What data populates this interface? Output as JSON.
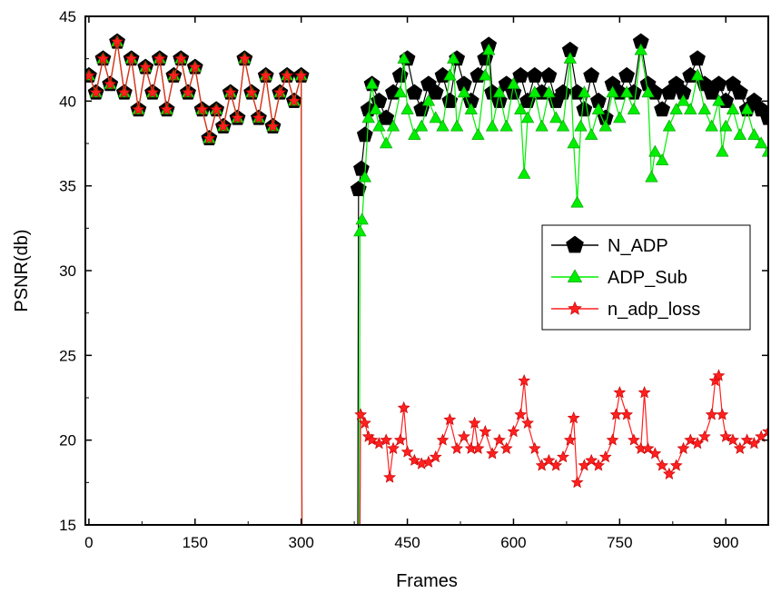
{
  "chart_data": {
    "type": "line",
    "title": "",
    "xlabel": "Frames",
    "ylabel": "PSNR(db)",
    "xlim": [
      -5,
      960
    ],
    "ylim": [
      15,
      45
    ],
    "xticks": [
      0,
      150,
      300,
      450,
      600,
      750,
      900
    ],
    "yticks": [
      15,
      20,
      25,
      30,
      35,
      40,
      45
    ],
    "grid": false,
    "legend_position": "right",
    "series": [
      {
        "name": "N_ADP",
        "color": "#000000",
        "marker": "pentagon",
        "values": [
          [
            0,
            41.5
          ],
          [
            10,
            40.5
          ],
          [
            20,
            42.5
          ],
          [
            30,
            41.0
          ],
          [
            40,
            43.5
          ],
          [
            50,
            40.5
          ],
          [
            60,
            42.5
          ],
          [
            70,
            39.5
          ],
          [
            80,
            42.0
          ],
          [
            90,
            40.5
          ],
          [
            100,
            42.5
          ],
          [
            110,
            39.5
          ],
          [
            120,
            41.5
          ],
          [
            130,
            42.5
          ],
          [
            140,
            40.5
          ],
          [
            150,
            42.0
          ],
          [
            160,
            39.5
          ],
          [
            170,
            37.8
          ],
          [
            180,
            39.5
          ],
          [
            190,
            38.5
          ],
          [
            200,
            40.5
          ],
          [
            210,
            39.0
          ],
          [
            220,
            42.5
          ],
          [
            230,
            40.5
          ],
          [
            240,
            39.0
          ],
          [
            250,
            41.5
          ],
          [
            260,
            38.5
          ],
          [
            270,
            40.5
          ],
          [
            280,
            41.5
          ],
          [
            290,
            40.0
          ],
          [
            300,
            41.5
          ],
          [
            301,
            15.0
          ],
          [
            380,
            15.0
          ],
          [
            381,
            34.8
          ],
          [
            385,
            36.0
          ],
          [
            390,
            38.0
          ],
          [
            395,
            39.5
          ],
          [
            400,
            41.0
          ],
          [
            410,
            40.0
          ],
          [
            420,
            39.0
          ],
          [
            430,
            40.5
          ],
          [
            440,
            41.5
          ],
          [
            450,
            42.5
          ],
          [
            460,
            40.5
          ],
          [
            470,
            39.5
          ],
          [
            480,
            41.0
          ],
          [
            490,
            40.5
          ],
          [
            500,
            41.5
          ],
          [
            510,
            40.0
          ],
          [
            520,
            42.5
          ],
          [
            530,
            41.0
          ],
          [
            540,
            40.0
          ],
          [
            550,
            41.5
          ],
          [
            560,
            42.5
          ],
          [
            565,
            43.3
          ],
          [
            570,
            40.5
          ],
          [
            580,
            40.0
          ],
          [
            590,
            41.0
          ],
          [
            600,
            40.5
          ],
          [
            610,
            41.5
          ],
          [
            620,
            40.0
          ],
          [
            630,
            41.5
          ],
          [
            640,
            40.5
          ],
          [
            650,
            41.5
          ],
          [
            660,
            40.0
          ],
          [
            670,
            40.5
          ],
          [
            680,
            43.0
          ],
          [
            690,
            40.5
          ],
          [
            700,
            39.5
          ],
          [
            710,
            41.5
          ],
          [
            720,
            40.0
          ],
          [
            730,
            39.0
          ],
          [
            740,
            41.0
          ],
          [
            750,
            40.5
          ],
          [
            760,
            41.5
          ],
          [
            770,
            40.5
          ],
          [
            780,
            43.5
          ],
          [
            790,
            41.0
          ],
          [
            800,
            40.5
          ],
          [
            810,
            39.5
          ],
          [
            820,
            40.5
          ],
          [
            830,
            41.0
          ],
          [
            840,
            40.5
          ],
          [
            850,
            41.5
          ],
          [
            860,
            42.5
          ],
          [
            870,
            41.0
          ],
          [
            880,
            40.5
          ],
          [
            890,
            41.0
          ],
          [
            900,
            40.0
          ],
          [
            910,
            41.0
          ],
          [
            920,
            40.5
          ],
          [
            930,
            39.5
          ],
          [
            940,
            40.0
          ],
          [
            950,
            39.5
          ],
          [
            960,
            39.0
          ]
        ]
      },
      {
        "name": "ADP_Sub",
        "color": "#00ee00",
        "marker": "triangle",
        "values": [
          [
            0,
            41.5
          ],
          [
            10,
            40.5
          ],
          [
            20,
            42.5
          ],
          [
            30,
            41.0
          ],
          [
            40,
            43.5
          ],
          [
            50,
            40.5
          ],
          [
            60,
            42.5
          ],
          [
            70,
            39.5
          ],
          [
            80,
            42.0
          ],
          [
            90,
            40.5
          ],
          [
            100,
            42.5
          ],
          [
            110,
            39.5
          ],
          [
            120,
            41.5
          ],
          [
            130,
            42.5
          ],
          [
            140,
            40.5
          ],
          [
            150,
            42.0
          ],
          [
            160,
            39.5
          ],
          [
            170,
            37.8
          ],
          [
            180,
            39.5
          ],
          [
            190,
            38.5
          ],
          [
            200,
            40.5
          ],
          [
            210,
            39.0
          ],
          [
            220,
            42.5
          ],
          [
            230,
            40.5
          ],
          [
            240,
            39.0
          ],
          [
            250,
            41.5
          ],
          [
            260,
            38.5
          ],
          [
            270,
            40.5
          ],
          [
            280,
            41.5
          ],
          [
            290,
            40.0
          ],
          [
            300,
            41.5
          ],
          [
            301,
            15.0
          ],
          [
            382,
            15.0
          ],
          [
            383,
            32.3
          ],
          [
            386,
            33.0
          ],
          [
            390,
            35.5
          ],
          [
            395,
            39.0
          ],
          [
            400,
            41.0
          ],
          [
            405,
            39.5
          ],
          [
            410,
            38.5
          ],
          [
            420,
            37.5
          ],
          [
            430,
            38.5
          ],
          [
            440,
            40.5
          ],
          [
            445,
            42.5
          ],
          [
            450,
            39.5
          ],
          [
            460,
            38.0
          ],
          [
            470,
            38.5
          ],
          [
            480,
            40.0
          ],
          [
            490,
            39.0
          ],
          [
            500,
            38.5
          ],
          [
            510,
            41.5
          ],
          [
            515,
            42.5
          ],
          [
            520,
            38.5
          ],
          [
            530,
            40.5
          ],
          [
            540,
            39.5
          ],
          [
            550,
            38.0
          ],
          [
            560,
            41.5
          ],
          [
            565,
            43.0
          ],
          [
            570,
            38.5
          ],
          [
            580,
            40.5
          ],
          [
            590,
            38.5
          ],
          [
            600,
            41.0
          ],
          [
            610,
            39.5
          ],
          [
            615,
            35.7
          ],
          [
            620,
            39.0
          ],
          [
            630,
            40.5
          ],
          [
            640,
            38.5
          ],
          [
            650,
            40.5
          ],
          [
            660,
            39.0
          ],
          [
            670,
            38.5
          ],
          [
            680,
            42.5
          ],
          [
            685,
            37.5
          ],
          [
            690,
            34.0
          ],
          [
            695,
            38.5
          ],
          [
            700,
            40.5
          ],
          [
            710,
            38.0
          ],
          [
            720,
            39.5
          ],
          [
            730,
            38.5
          ],
          [
            740,
            40.5
          ],
          [
            750,
            39.0
          ],
          [
            760,
            40.5
          ],
          [
            770,
            39.5
          ],
          [
            780,
            43.0
          ],
          [
            790,
            40.5
          ],
          [
            795,
            35.5
          ],
          [
            800,
            37.0
          ],
          [
            810,
            36.5
          ],
          [
            820,
            38.5
          ],
          [
            830,
            39.5
          ],
          [
            840,
            40.0
          ],
          [
            850,
            39.5
          ],
          [
            860,
            41.5
          ],
          [
            870,
            39.5
          ],
          [
            880,
            38.5
          ],
          [
            890,
            40.0
          ],
          [
            895,
            37.0
          ],
          [
            900,
            38.5
          ],
          [
            910,
            39.5
          ],
          [
            920,
            38.0
          ],
          [
            930,
            39.5
          ],
          [
            940,
            38.0
          ],
          [
            950,
            37.5
          ],
          [
            960,
            37.0
          ]
        ]
      },
      {
        "name": "n_adp_loss",
        "color": "#ff2020",
        "marker": "star",
        "values": [
          [
            0,
            41.5
          ],
          [
            10,
            40.5
          ],
          [
            20,
            42.5
          ],
          [
            30,
            41.0
          ],
          [
            40,
            43.5
          ],
          [
            50,
            40.5
          ],
          [
            60,
            42.5
          ],
          [
            70,
            39.5
          ],
          [
            80,
            42.0
          ],
          [
            90,
            40.5
          ],
          [
            100,
            42.5
          ],
          [
            110,
            39.5
          ],
          [
            120,
            41.5
          ],
          [
            130,
            42.5
          ],
          [
            140,
            40.5
          ],
          [
            150,
            42.0
          ],
          [
            160,
            39.5
          ],
          [
            170,
            37.8
          ],
          [
            180,
            39.5
          ],
          [
            190,
            38.5
          ],
          [
            200,
            40.5
          ],
          [
            210,
            39.0
          ],
          [
            220,
            42.5
          ],
          [
            230,
            40.5
          ],
          [
            240,
            39.0
          ],
          [
            250,
            41.5
          ],
          [
            260,
            38.5
          ],
          [
            270,
            40.5
          ],
          [
            280,
            41.5
          ],
          [
            290,
            40.0
          ],
          [
            300,
            41.5
          ],
          [
            301,
            15.0
          ],
          [
            383,
            15.0
          ],
          [
            384,
            21.5
          ],
          [
            390,
            21.0
          ],
          [
            395,
            20.2
          ],
          [
            400,
            20.0
          ],
          [
            410,
            19.8
          ],
          [
            420,
            20.0
          ],
          [
            425,
            17.8
          ],
          [
            430,
            19.5
          ],
          [
            440,
            20.0
          ],
          [
            445,
            21.9
          ],
          [
            450,
            19.3
          ],
          [
            460,
            18.8
          ],
          [
            470,
            18.6
          ],
          [
            480,
            18.7
          ],
          [
            490,
            19.0
          ],
          [
            500,
            20.0
          ],
          [
            510,
            21.2
          ],
          [
            520,
            19.5
          ],
          [
            530,
            20.2
          ],
          [
            540,
            19.5
          ],
          [
            545,
            21.0
          ],
          [
            550,
            19.5
          ],
          [
            560,
            20.5
          ],
          [
            570,
            19.2
          ],
          [
            580,
            20.0
          ],
          [
            590,
            19.5
          ],
          [
            600,
            20.5
          ],
          [
            610,
            21.5
          ],
          [
            615,
            23.5
          ],
          [
            620,
            21.0
          ],
          [
            630,
            19.5
          ],
          [
            640,
            18.5
          ],
          [
            650,
            18.8
          ],
          [
            660,
            18.5
          ],
          [
            670,
            19.0
          ],
          [
            680,
            20.0
          ],
          [
            685,
            21.3
          ],
          [
            690,
            17.5
          ],
          [
            700,
            18.5
          ],
          [
            710,
            18.8
          ],
          [
            720,
            18.5
          ],
          [
            730,
            19.0
          ],
          [
            740,
            20.0
          ],
          [
            745,
            21.5
          ],
          [
            750,
            22.8
          ],
          [
            760,
            21.5
          ],
          [
            770,
            20.0
          ],
          [
            780,
            19.5
          ],
          [
            785,
            22.8
          ],
          [
            790,
            19.5
          ],
          [
            800,
            19.2
          ],
          [
            810,
            18.5
          ],
          [
            820,
            18.0
          ],
          [
            830,
            18.5
          ],
          [
            840,
            19.5
          ],
          [
            850,
            20.0
          ],
          [
            860,
            19.8
          ],
          [
            870,
            20.2
          ],
          [
            880,
            21.5
          ],
          [
            885,
            23.5
          ],
          [
            890,
            23.8
          ],
          [
            895,
            21.5
          ],
          [
            900,
            20.2
          ],
          [
            910,
            20.0
          ],
          [
            920,
            19.5
          ],
          [
            930,
            20.0
          ],
          [
            940,
            19.8
          ],
          [
            950,
            20.2
          ],
          [
            960,
            20.5
          ]
        ]
      }
    ]
  }
}
